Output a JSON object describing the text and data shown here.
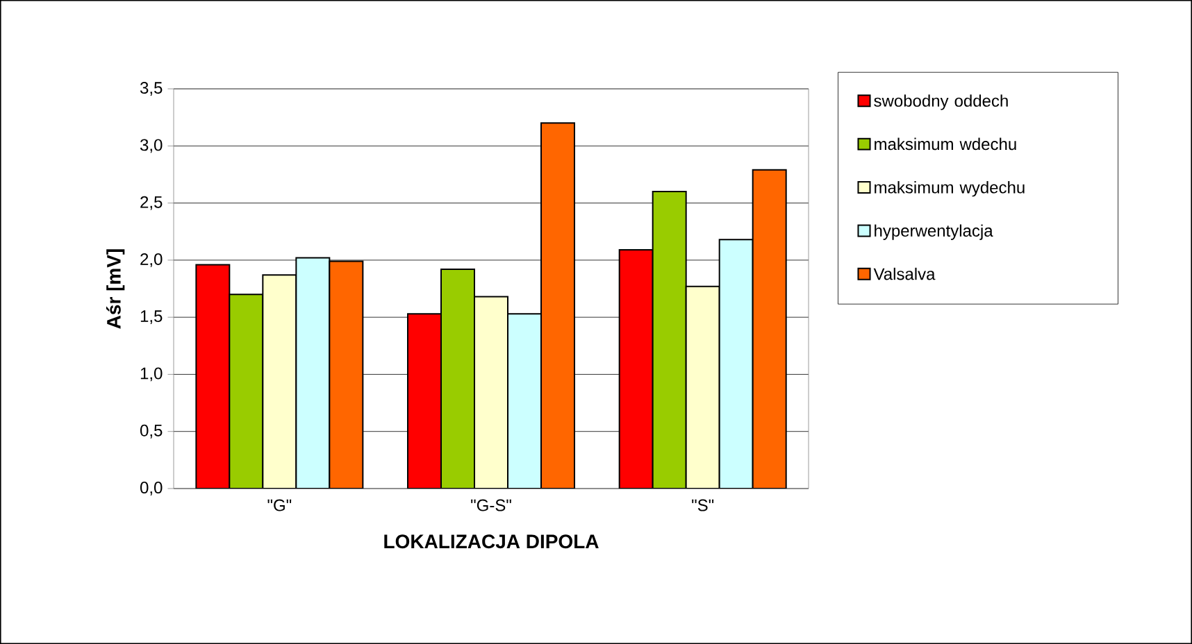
{
  "chart_data": {
    "type": "bar",
    "xlabel": "LOKALIZACJA DIPOLA",
    "ylabel": "Aśr [mV]",
    "categories": [
      "\"G\"",
      "\"G-S\"",
      "\"S\""
    ],
    "series": [
      {
        "name": "swobodny oddech",
        "color": "#ff0000",
        "values": [
          1.96,
          1.53,
          2.09
        ]
      },
      {
        "name": "maksimum wdechu",
        "color": "#99cc00",
        "values": [
          1.7,
          1.92,
          2.6
        ]
      },
      {
        "name": "maksimum wydechu",
        "color": "#ffffcc",
        "values": [
          1.87,
          1.68,
          1.77
        ]
      },
      {
        "name": "hyperwentylacja",
        "color": "#ccffff",
        "values": [
          2.02,
          1.53,
          2.18
        ]
      },
      {
        "name": "Valsalva",
        "color": "#ff6600",
        "values": [
          1.99,
          3.2,
          2.79
        ]
      }
    ],
    "ylim": [
      0,
      3.5
    ],
    "yticks": [
      {
        "value": 0,
        "label": "0,0"
      },
      {
        "value": 0.5,
        "label": "0,5"
      },
      {
        "value": 1,
        "label": "1,0"
      },
      {
        "value": 1.5,
        "label": "1,5"
      },
      {
        "value": 2,
        "label": "2,0"
      },
      {
        "value": 2.5,
        "label": "2,5"
      },
      {
        "value": 3,
        "label": "3,0"
      },
      {
        "value": 3.5,
        "label": "3,5"
      }
    ],
    "grid": "y",
    "legend": "right"
  }
}
